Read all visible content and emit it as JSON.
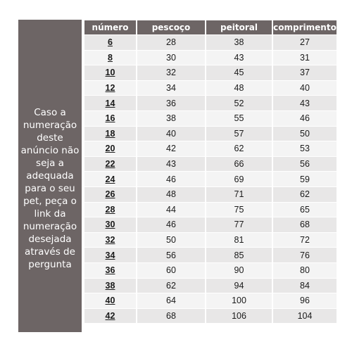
{
  "side_note": "Caso a numeração deste anúncio não seja a adequada para o seu pet, peça o link da numeração desejada através de pergunta",
  "table": {
    "headers": [
      "número",
      "pescoço",
      "peitoral",
      "comprimento"
    ],
    "rows": [
      [
        "6",
        "28",
        "38",
        "27"
      ],
      [
        "8",
        "30",
        "43",
        "31"
      ],
      [
        "10",
        "32",
        "45",
        "37"
      ],
      [
        "12",
        "34",
        "48",
        "40"
      ],
      [
        "14",
        "36",
        "52",
        "43"
      ],
      [
        "16",
        "38",
        "55",
        "46"
      ],
      [
        "18",
        "40",
        "57",
        "50"
      ],
      [
        "20",
        "42",
        "62",
        "53"
      ],
      [
        "22",
        "43",
        "66",
        "56"
      ],
      [
        "24",
        "46",
        "69",
        "59"
      ],
      [
        "26",
        "48",
        "71",
        "62"
      ],
      [
        "28",
        "44",
        "75",
        "65"
      ],
      [
        "30",
        "46",
        "77",
        "68"
      ],
      [
        "32",
        "50",
        "81",
        "72"
      ],
      [
        "34",
        "56",
        "85",
        "76"
      ],
      [
        "36",
        "60",
        "90",
        "80"
      ],
      [
        "38",
        "62",
        "94",
        "84"
      ],
      [
        "40",
        "64",
        "100",
        "96"
      ],
      [
        "42",
        "68",
        "106",
        "104"
      ]
    ]
  },
  "colors": {
    "header_bg": "#6d6565",
    "header_text": "#ffffff",
    "cell_bg": "#e8e7e7",
    "cell_alt_bg": "#f4f4f4"
  }
}
